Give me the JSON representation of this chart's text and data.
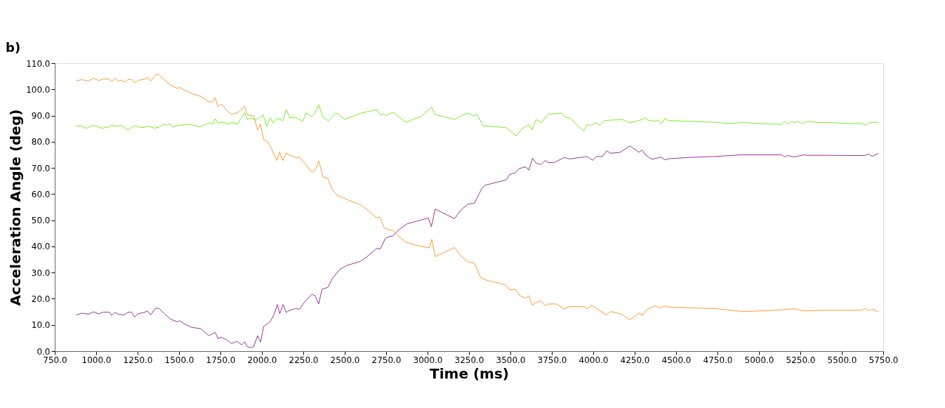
{
  "chart_data": {
    "type": "line",
    "title": "b)",
    "xlabel": "Time (ms)",
    "ylabel": "Acceleration Angle (deg)",
    "xlim": [
      750,
      5750
    ],
    "ylim": [
      0,
      110
    ],
    "xticks": [
      {
        "value": 750,
        "label": "750.0"
      },
      {
        "value": 1000,
        "label": "1000.0"
      },
      {
        "value": 1250,
        "label": "1250.0"
      },
      {
        "value": 1500,
        "label": "1500.0"
      },
      {
        "value": 1750,
        "label": "1750.0"
      },
      {
        "value": 2000,
        "label": "2000.0"
      },
      {
        "value": 2250,
        "label": "2250.0"
      },
      {
        "value": 2500,
        "label": "2500.0"
      },
      {
        "value": 2750,
        "label": "2750.0"
      },
      {
        "value": 3000,
        "label": "3000.0"
      },
      {
        "value": 3250,
        "label": "3250.0"
      },
      {
        "value": 3500,
        "label": "3500.0"
      },
      {
        "value": 3750,
        "label": "3750.0"
      },
      {
        "value": 4000,
        "label": "4000.0"
      },
      {
        "value": 4250,
        "label": "4250.0"
      },
      {
        "value": 4500,
        "label": "4500.0"
      },
      {
        "value": 4750,
        "label": "4750.0"
      },
      {
        "value": 5000,
        "label": "5000.0"
      },
      {
        "value": 5250,
        "label": "5250.0"
      },
      {
        "value": 5500,
        "label": "5500.0"
      },
      {
        "value": 5750,
        "label": "5750.0"
      }
    ],
    "yticks": [
      {
        "value": 0,
        "label": "0.0"
      },
      {
        "value": 10,
        "label": "10.0"
      },
      {
        "value": 20,
        "label": "20.0"
      },
      {
        "value": 30,
        "label": "30.0"
      },
      {
        "value": 40,
        "label": "40.0"
      },
      {
        "value": 50,
        "label": "50.0"
      },
      {
        "value": 60,
        "label": "60.0"
      },
      {
        "value": 70,
        "label": "70.0"
      },
      {
        "value": 80,
        "label": "80.0"
      },
      {
        "value": 90,
        "label": "90.0"
      },
      {
        "value": 100,
        "label": "100.0"
      },
      {
        "value": 110,
        "label": "110.0"
      }
    ],
    "grid": false,
    "marker": "none",
    "line_style": "solid",
    "series": [
      {
        "color": "#993399",
        "x": [
          878,
          915,
          953,
          984,
          1015,
          1045,
          1079,
          1093,
          1113,
          1134,
          1168,
          1195,
          1213,
          1232,
          1254,
          1291,
          1309,
          1329,
          1359,
          1380,
          1414,
          1445,
          1489,
          1503,
          1530,
          1571,
          1632,
          1680,
          1718,
          1735,
          1755,
          1790,
          1817,
          1851,
          1878,
          1896,
          1912,
          1933,
          1951,
          1974,
          1992,
          2011,
          2035,
          2052,
          2074,
          2093,
          2108,
          2128,
          2147,
          2169,
          2206,
          2227,
          2254,
          2302,
          2322,
          2343,
          2363,
          2398,
          2425,
          2466,
          2507,
          2596,
          2643,
          2691,
          2714,
          2746,
          2766,
          2791,
          2828,
          2876,
          3005,
          3023,
          3046,
          3163,
          3204,
          3245,
          3283,
          3327,
          3347,
          3474,
          3497,
          3529,
          3552,
          3593,
          3611,
          3634,
          3654,
          3684,
          3709,
          3729,
          3764,
          3825,
          3859,
          3962,
          3996,
          4020,
          4057,
          4082,
          4103,
          4160,
          4221,
          4276,
          4296,
          4317,
          4354,
          4408,
          4433,
          4454,
          4583,
          4747,
          4891,
          5137,
          5154,
          5173,
          5212,
          5273,
          5294,
          5403,
          5635,
          5663,
          5683,
          5720
        ],
        "values": [
          13.8,
          14.5,
          14.1,
          15.0,
          14.2,
          14.9,
          14.9,
          13.6,
          14.8,
          14.1,
          13.8,
          14.9,
          14.9,
          13.0,
          14.3,
          14.8,
          15.4,
          13.9,
          16.4,
          16.3,
          14.2,
          12.3,
          11.2,
          11.6,
          10.5,
          9.2,
          8.5,
          5.9,
          7.2,
          4.8,
          5.3,
          4.2,
          2.9,
          3.7,
          2.4,
          3.5,
          1.7,
          1.3,
          1.7,
          5.9,
          3.5,
          9.5,
          10.5,
          11.4,
          14.1,
          17.8,
          14.3,
          17.8,
          14.8,
          15.6,
          16.3,
          16.0,
          18.5,
          21.7,
          21.1,
          18.0,
          23.7,
          24.3,
          27.7,
          31.0,
          32.6,
          34.3,
          36.5,
          39.2,
          39.0,
          43.1,
          43.7,
          44.0,
          46.5,
          48.6,
          50.9,
          47.5,
          54.3,
          50.6,
          54.1,
          56.2,
          56.5,
          62.1,
          63.4,
          65.4,
          67.6,
          68.1,
          69.7,
          70.4,
          69.1,
          73.7,
          71.8,
          71.3,
          72.8,
          72.0,
          72.0,
          74.0,
          73.4,
          74.4,
          72.9,
          74.4,
          74.4,
          76.6,
          75.6,
          75.9,
          78.4,
          76.0,
          76.8,
          74.8,
          73.3,
          74.1,
          73.1,
          73.5,
          74.0,
          74.4,
          75.0,
          75.0,
          74.2,
          74.7,
          74.2,
          75.0,
          74.8,
          74.8,
          74.7,
          75.3,
          74.4,
          75.5
        ]
      },
      {
        "color": "#77ee22",
        "x": [
          878,
          908,
          940,
          984,
          1038,
          1059,
          1072,
          1096,
          1127,
          1152,
          1193,
          1229,
          1257,
          1284,
          1311,
          1352,
          1380,
          1407,
          1427,
          1444,
          1462,
          1482,
          1557,
          1632,
          1680,
          1701,
          1718,
          1735,
          1755,
          1796,
          1817,
          1855,
          1896,
          1912,
          1933,
          1964,
          2008,
          2029,
          2052,
          2070,
          2090,
          2128,
          2147,
          2169,
          2199,
          2247,
          2267,
          2302,
          2322,
          2343,
          2366,
          2401,
          2445,
          2459,
          2500,
          2596,
          2695,
          2714,
          2732,
          2750,
          2791,
          2869,
          2964,
          3023,
          3046,
          3163,
          3204,
          3242,
          3279,
          3296,
          3337,
          3474,
          3534,
          3572,
          3611,
          3631,
          3654,
          3688,
          3727,
          3805,
          3829,
          3859,
          3941,
          3962,
          3982,
          4012,
          4040,
          4067,
          4174,
          4221,
          4296,
          4314,
          4335,
          4376,
          4392,
          4413,
          4433,
          4454,
          4542,
          4734,
          4843,
          4891,
          5020,
          5137,
          5154,
          5173,
          5195,
          5214,
          5235,
          5260,
          5294,
          5348,
          5458,
          5567,
          5621,
          5642,
          5669,
          5720
        ],
        "values": [
          85.9,
          86.1,
          85.1,
          86.3,
          85.1,
          85.6,
          85.4,
          86.3,
          85.9,
          86.3,
          84.5,
          86.2,
          85.6,
          85.4,
          85.9,
          85.2,
          85.6,
          86.7,
          86.3,
          86.9,
          85.6,
          86.1,
          86.7,
          85.7,
          87.2,
          86.7,
          88.8,
          87.0,
          87.5,
          86.7,
          87.3,
          86.9,
          91.1,
          88.5,
          89.1,
          88.2,
          90.2,
          85.9,
          89.1,
          87.0,
          88.9,
          88.1,
          92.3,
          89.1,
          89.4,
          87.8,
          91.0,
          89.6,
          91.1,
          94.2,
          89.6,
          87.9,
          90.9,
          90.7,
          88.5,
          90.9,
          92.3,
          90.3,
          90.7,
          90.0,
          91.3,
          87.4,
          89.8,
          93.2,
          90.4,
          88.5,
          90.0,
          90.9,
          89.8,
          90.5,
          86.1,
          85.4,
          82.2,
          85.0,
          86.5,
          84.5,
          88.5,
          87.3,
          90.5,
          90.9,
          89.4,
          89.1,
          84.1,
          86.5,
          86.3,
          87.2,
          86.3,
          88.1,
          88.5,
          87.2,
          88.5,
          89.1,
          88.1,
          87.9,
          88.2,
          86.9,
          88.9,
          88.1,
          87.9,
          87.4,
          86.9,
          87.4,
          86.9,
          86.6,
          87.8,
          86.7,
          87.8,
          87.2,
          87.8,
          86.9,
          87.8,
          87.4,
          87.2,
          86.9,
          86.9,
          86.3,
          87.4,
          87.4
        ]
      },
      {
        "color": "#ff9933",
        "x": [
          878,
          915,
          953,
          984,
          1015,
          1045,
          1079,
          1093,
          1113,
          1134,
          1154,
          1172,
          1195,
          1216,
          1232,
          1254,
          1291,
          1311,
          1329,
          1363,
          1380,
          1421,
          1445,
          1489,
          1503,
          1530,
          1585,
          1632,
          1677,
          1701,
          1718,
          1735,
          1755,
          1790,
          1817,
          1858,
          1896,
          1912,
          1951,
          1974,
          1992,
          2011,
          2035,
          2060,
          2090,
          2106,
          2128,
          2147,
          2172,
          2206,
          2227,
          2302,
          2322,
          2343,
          2370,
          2398,
          2425,
          2459,
          2521,
          2596,
          2643,
          2691,
          2712,
          2739,
          2760,
          2791,
          2821,
          2869,
          2930,
          3010,
          3026,
          3046,
          3163,
          3204,
          3245,
          3283,
          3320,
          3354,
          3474,
          3497,
          3529,
          3559,
          3593,
          3611,
          3631,
          3654,
          3684,
          3709,
          3729,
          3777,
          3825,
          3859,
          3941,
          3966,
          3989,
          4030,
          4078,
          4105,
          4167,
          4221,
          4276,
          4296,
          4317,
          4372,
          4406,
          4433,
          4447,
          4638,
          4747,
          4898,
          5075,
          5212,
          5266,
          5403,
          5621,
          5642,
          5663,
          5683,
          5720
        ],
        "values": [
          103.3,
          103.7,
          103.2,
          104.3,
          103.3,
          104.0,
          103.9,
          103.0,
          104.2,
          103.2,
          103.5,
          102.8,
          103.8,
          103.7,
          102.5,
          103.5,
          103.8,
          104.5,
          103.2,
          105.9,
          105.5,
          103.2,
          101.7,
          100.4,
          100.8,
          99.8,
          98.2,
          97.3,
          95.3,
          95.2,
          96.9,
          93.4,
          94.4,
          91.8,
          90.4,
          91.3,
          93.5,
          90.3,
          89.8,
          84.5,
          86.7,
          80.8,
          80.1,
          77.0,
          72.8,
          76.0,
          72.8,
          75.6,
          74.7,
          74.0,
          74.1,
          68.4,
          69.1,
          72.6,
          66.5,
          66.0,
          61.6,
          59.4,
          57.7,
          55.9,
          53.7,
          51.0,
          51.2,
          47.1,
          46.5,
          46.1,
          44.2,
          41.6,
          40.5,
          39.4,
          42.7,
          36.1,
          39.6,
          36.1,
          34.1,
          33.6,
          28.2,
          27.1,
          25.3,
          23.3,
          23.6,
          21.1,
          20.2,
          21.1,
          17.6,
          18.6,
          19.2,
          17.4,
          18.0,
          18.0,
          16.1,
          17.0,
          17.0,
          16.1,
          17.6,
          15.8,
          13.9,
          15.1,
          14.2,
          12.0,
          14.5,
          13.6,
          15.6,
          17.3,
          16.5,
          17.3,
          16.9,
          16.4,
          16.2,
          15.1,
          15.5,
          16.2,
          15.4,
          15.6,
          15.6,
          16.4,
          15.4,
          16.1,
          15.1
        ]
      }
    ]
  }
}
